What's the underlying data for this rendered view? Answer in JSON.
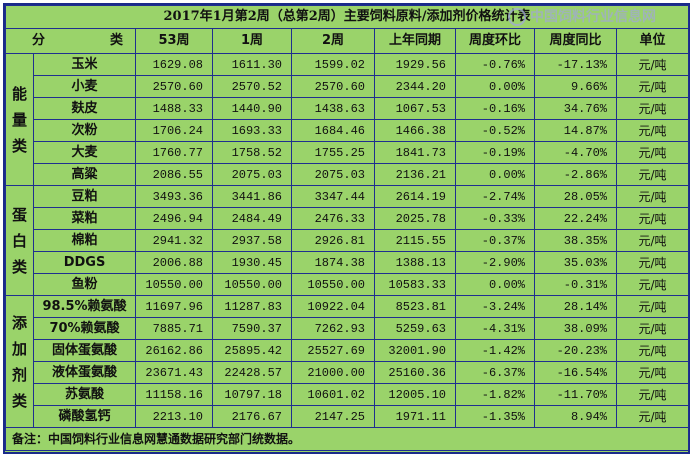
{
  "title": "2017年1月第2周（总第2周）主要饲料原料/添加剂价格统计表",
  "headers": [
    "分　类",
    "53周",
    "1周",
    "2周",
    "上年同期",
    "周度环比",
    "周度同比",
    "单位"
  ],
  "groups": [
    {
      "name": "能量类",
      "rows": [
        {
          "item": "玉米",
          "v53": "1629.08",
          "w1": "1611.30",
          "w2": "1599.02",
          "ly": "1929.56",
          "wow": "-0.76%",
          "yoy": "-17.13%",
          "unit": "元/吨"
        },
        {
          "item": "小麦",
          "v53": "2570.60",
          "w1": "2570.52",
          "w2": "2570.60",
          "ly": "2344.20",
          "wow": "0.00%",
          "yoy": "9.66%",
          "unit": "元/吨"
        },
        {
          "item": "麸皮",
          "v53": "1488.33",
          "w1": "1440.90",
          "w2": "1438.63",
          "ly": "1067.53",
          "wow": "-0.16%",
          "yoy": "34.76%",
          "unit": "元/吨"
        },
        {
          "item": "次粉",
          "v53": "1706.24",
          "w1": "1693.33",
          "w2": "1684.46",
          "ly": "1466.38",
          "wow": "-0.52%",
          "yoy": "14.87%",
          "unit": "元/吨"
        },
        {
          "item": "大麦",
          "v53": "1760.77",
          "w1": "1758.52",
          "w2": "1755.25",
          "ly": "1841.73",
          "wow": "-0.19%",
          "yoy": "-4.70%",
          "unit": "元/吨"
        },
        {
          "item": "高粱",
          "v53": "2086.55",
          "w1": "2075.03",
          "w2": "2075.03",
          "ly": "2136.21",
          "wow": "0.00%",
          "yoy": "-2.86%",
          "unit": "元/吨"
        }
      ]
    },
    {
      "name": "蛋白类",
      "rows": [
        {
          "item": "豆粕",
          "v53": "3493.36",
          "w1": "3441.86",
          "w2": "3347.44",
          "ly": "2614.19",
          "wow": "-2.74%",
          "yoy": "28.05%",
          "unit": "元/吨"
        },
        {
          "item": "菜粕",
          "v53": "2496.94",
          "w1": "2484.49",
          "w2": "2476.33",
          "ly": "2025.78",
          "wow": "-0.33%",
          "yoy": "22.24%",
          "unit": "元/吨"
        },
        {
          "item": "棉粕",
          "v53": "2941.32",
          "w1": "2937.58",
          "w2": "2926.81",
          "ly": "2115.55",
          "wow": "-0.37%",
          "yoy": "38.35%",
          "unit": "元/吨"
        },
        {
          "item": "DDGS",
          "v53": "2006.88",
          "w1": "1930.45",
          "w2": "1874.38",
          "ly": "1388.13",
          "wow": "-2.90%",
          "yoy": "35.03%",
          "unit": "元/吨"
        },
        {
          "item": "鱼粉",
          "v53": "10550.00",
          "w1": "10550.00",
          "w2": "10550.00",
          "ly": "10583.33",
          "wow": "0.00%",
          "yoy": "-0.31%",
          "unit": "元/吨"
        }
      ]
    },
    {
      "name": "添加剂类",
      "rows": [
        {
          "item": "98.5%赖氨酸",
          "v53": "11697.96",
          "w1": "11287.83",
          "w2": "10922.04",
          "ly": "8523.81",
          "wow": "-3.24%",
          "yoy": "28.14%",
          "unit": "元/吨"
        },
        {
          "item": "70%赖氨酸",
          "v53": "7885.71",
          "w1": "7590.37",
          "w2": "7262.93",
          "ly": "5259.63",
          "wow": "-4.31%",
          "yoy": "38.09%",
          "unit": "元/吨"
        },
        {
          "item": "固体蛋氨酸",
          "v53": "26162.86",
          "w1": "25895.42",
          "w2": "25527.69",
          "ly": "32001.90",
          "wow": "-1.42%",
          "yoy": "-20.23%",
          "unit": "元/吨"
        },
        {
          "item": "液体蛋氨酸",
          "v53": "23671.43",
          "w1": "22428.57",
          "w2": "21000.00",
          "ly": "25160.36",
          "wow": "-6.37%",
          "yoy": "-16.54%",
          "unit": "元/吨"
        },
        {
          "item": "苏氨酸",
          "v53": "11158.16",
          "w1": "10797.18",
          "w2": "10601.02",
          "ly": "12005.10",
          "wow": "-1.82%",
          "yoy": "-11.70%",
          "unit": "元/吨"
        },
        {
          "item": "磷酸氢钙",
          "v53": "2213.10",
          "w1": "2176.67",
          "w2": "2147.25",
          "ly": "1971.11",
          "wow": "-1.35%",
          "yoy": "8.94%",
          "unit": "元/吨"
        }
      ]
    }
  ],
  "note": "备注：中国饲料行业信息网慧通数据研究部门统数据。",
  "watermark": "中国饲料行业信息网"
}
